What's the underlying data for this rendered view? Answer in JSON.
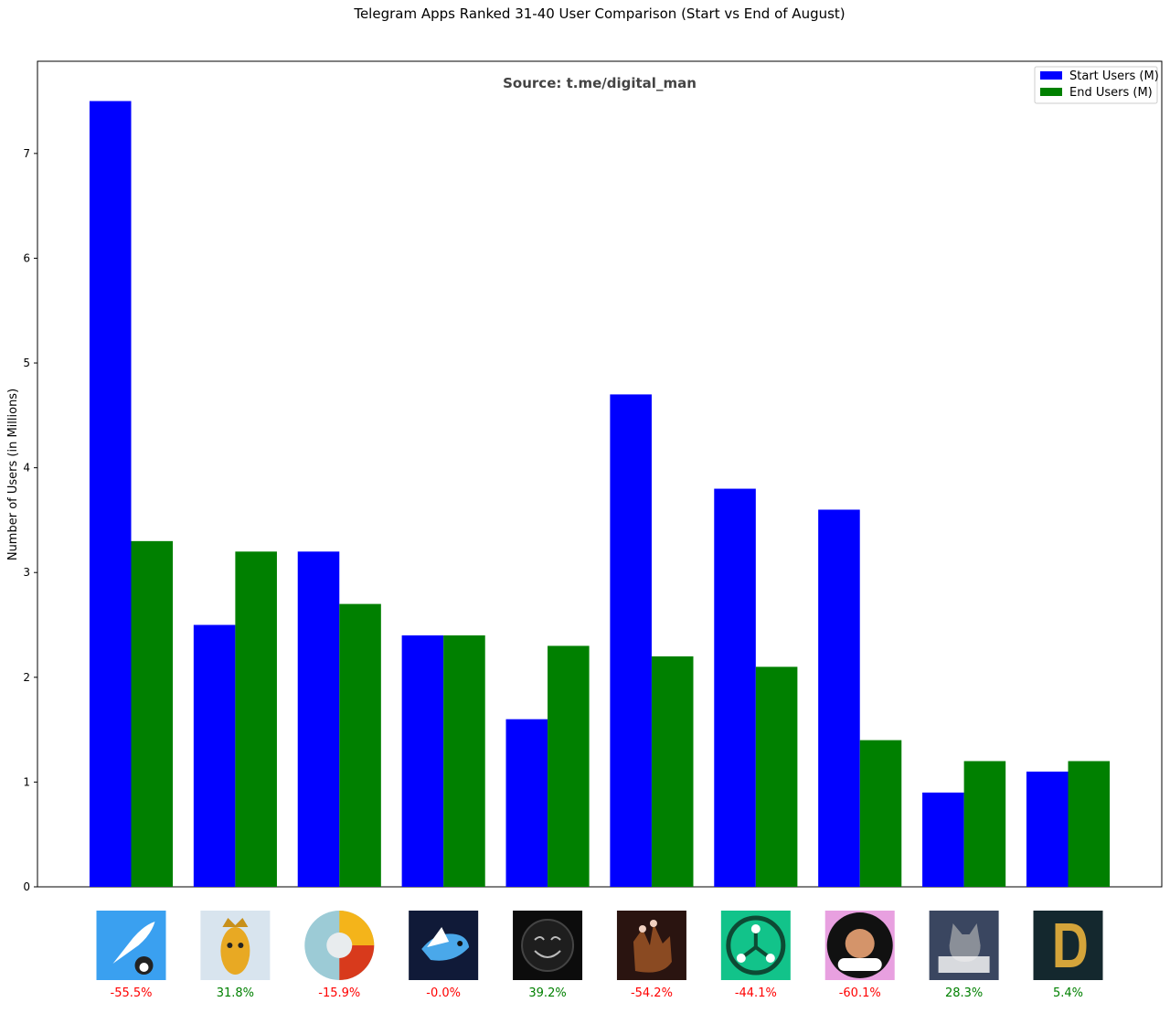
{
  "chart_data": {
    "type": "bar",
    "title": "Telegram Apps Ranked 31-40 User Comparison (Start vs End of August)",
    "annotation": "Source: t.me/digital_man",
    "ylabel": "Number of Users (in Millions)",
    "xlabel": "",
    "ylim": [
      0,
      7.88
    ],
    "yticks": [
      0,
      1,
      2,
      3,
      4,
      5,
      6,
      7
    ],
    "grid": false,
    "legend_position": "top-right",
    "categories": [
      "",
      "",
      "",
      "",
      "",
      "",
      "",
      "",
      "",
      ""
    ],
    "app_icons": [
      "rocket-penguin-icon",
      "corn-king-icon",
      "dotted-planet-icon",
      "pixel-bird-icon",
      "smiling-face-icon",
      "cartoon-hand-icon",
      "network-node-icon",
      "city-holder-game-icon",
      "hash-cats-icon",
      "gold-letter-d-icon"
    ],
    "series": [
      {
        "name": "Start Users (M)",
        "color": "#0000ff",
        "values": [
          7.5,
          2.5,
          3.2,
          2.4,
          1.6,
          4.7,
          3.8,
          3.6,
          0.9,
          1.1
        ]
      },
      {
        "name": "End Users (M)",
        "color": "#008000",
        "values": [
          3.3,
          3.2,
          2.7,
          2.4,
          2.3,
          2.2,
          2.1,
          1.4,
          1.2,
          1.2
        ]
      }
    ],
    "change_labels": [
      "-55.5%",
      "31.8%",
      "-15.9%",
      "-0.0%",
      "39.2%",
      "-54.2%",
      "-44.1%",
      "-60.1%",
      "28.3%",
      "5.4%"
    ],
    "positive_color": "#008000",
    "negative_color": "#ff0000"
  }
}
